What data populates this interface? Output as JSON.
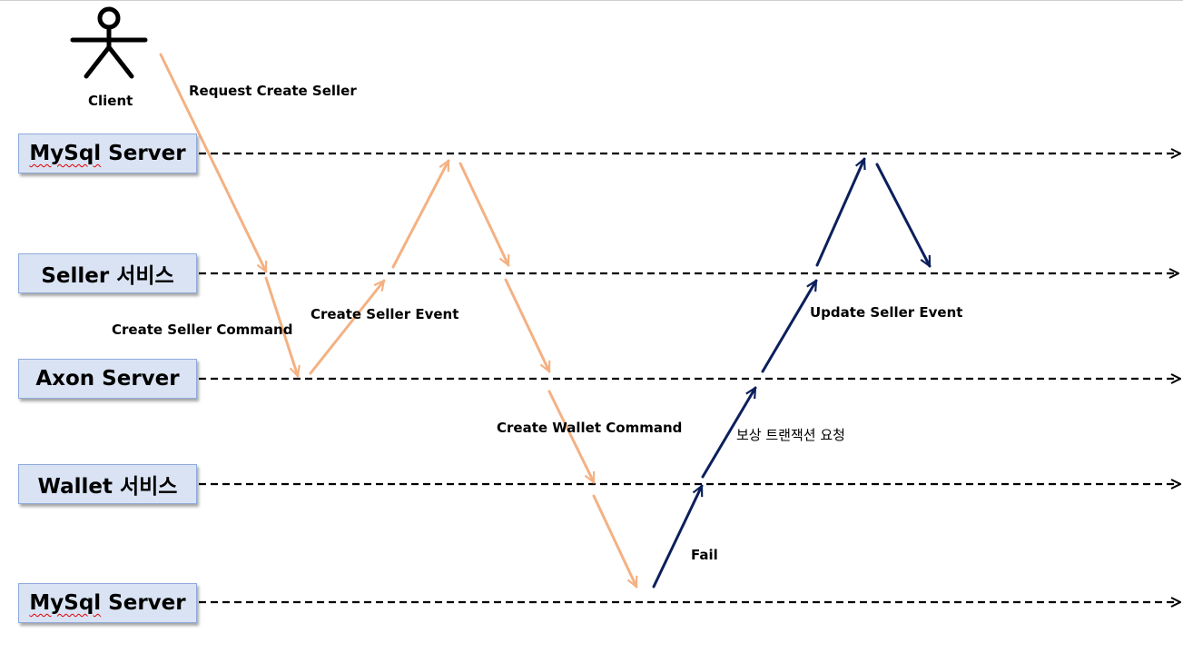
{
  "actor": {
    "label": "Client"
  },
  "lanes": [
    {
      "id": "mysql-top",
      "label": "MySql Server",
      "spellcheck_word": "MySql",
      "rest": " Server"
    },
    {
      "id": "seller-service",
      "label": "Seller 서비스"
    },
    {
      "id": "axon-server",
      "label": "Axon Server"
    },
    {
      "id": "wallet-service",
      "label": "Wallet 서비스"
    },
    {
      "id": "mysql-bottom",
      "label": "MySql Server",
      "spellcheck_word": "MySql",
      "rest": " Server"
    }
  ],
  "messages": {
    "request_create_seller": "Request Create Seller",
    "create_seller_command": "Create Seller Command",
    "create_seller_event": "Create Seller Event",
    "create_wallet_command": "Create Wallet Command",
    "fail": "Fail",
    "compensation_request": "보상 트랜잭션 요청",
    "update_seller_event": "Update Seller Event"
  },
  "colors": {
    "success_flow": "#f4b183",
    "failure_flow": "#0b1f5c",
    "lane_line": "#000000",
    "box_fill": "#dae3f3",
    "box_border": "#8faadc"
  }
}
